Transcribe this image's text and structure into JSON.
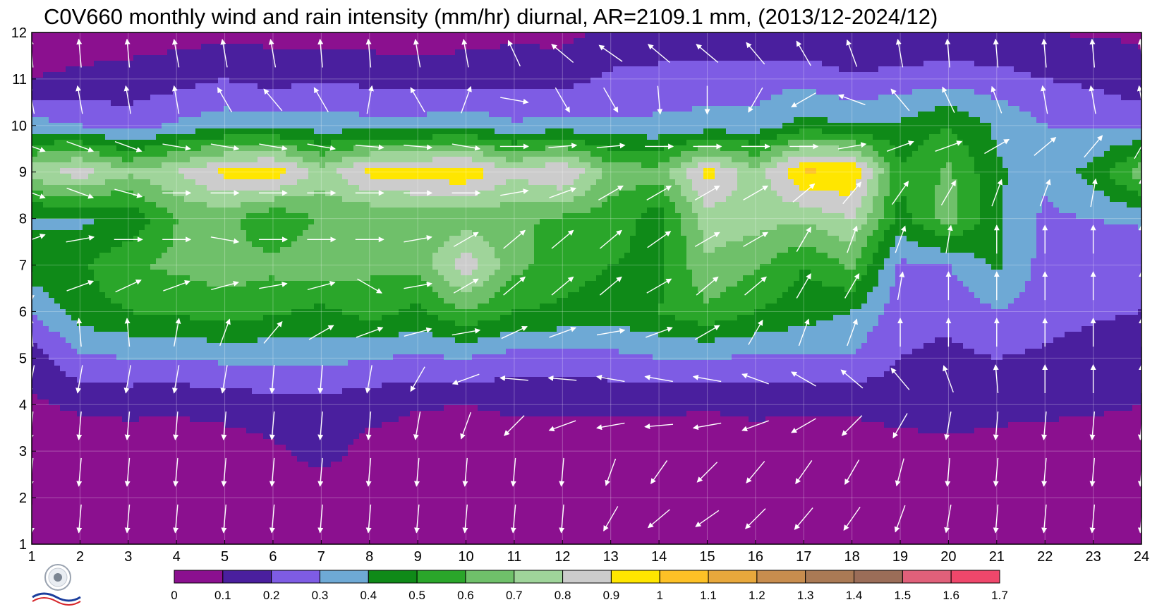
{
  "chart_data": {
    "type": "heatmap",
    "title": "C0V660 monthly wind and rain intensity (mm/hr) diurnal, AR=2109.1 mm, (2013/12-2024/12)",
    "x_ticks": [
      "1",
      "2",
      "3",
      "4",
      "5",
      "6",
      "7",
      "8",
      "9",
      "10",
      "11",
      "12",
      "13",
      "14",
      "15",
      "16",
      "17",
      "18",
      "19",
      "20",
      "21",
      "22",
      "23",
      "24"
    ],
    "y_ticks": [
      "1",
      "2",
      "3",
      "4",
      "5",
      "6",
      "7",
      "8",
      "9",
      "10",
      "11",
      "12"
    ],
    "xlim": [
      1,
      24
    ],
    "ylim": [
      1,
      12
    ],
    "colorbar": {
      "levels": [
        "0",
        "0.1",
        "0.2",
        "0.3",
        "0.4",
        "0.5",
        "0.6",
        "0.7",
        "0.8",
        "0.9",
        "1",
        "1.1",
        "1.2",
        "1.3",
        "1.4",
        "1.5",
        "1.6",
        "1.7"
      ],
      "colors": [
        "#8b108f",
        "#4a1f9e",
        "#7e5ce4",
        "#6ea9d5",
        "#0f8a18",
        "#2aa62a",
        "#6fc06a",
        "#9fd49a",
        "#cccccc",
        "#ffe600",
        "#fdc126",
        "#e8a83c",
        "#c88d4e",
        "#aa7a55",
        "#9b6d58",
        "#e0607a",
        "#ef476b",
        "#d42a3d"
      ]
    },
    "rain_intensity": [
      [
        0.03,
        0.03,
        0.03,
        0.03,
        0.03,
        0.03,
        0.08,
        0.03,
        0.03,
        0.03,
        0.03,
        0.03,
        0.03,
        0.03,
        0.03,
        0.03,
        0.03,
        0.03,
        0.03,
        0.03,
        0.03,
        0.03,
        0.03,
        0.03
      ],
      [
        0.03,
        0.03,
        0.03,
        0.03,
        0.03,
        0.03,
        0.03,
        0.03,
        0.03,
        0.03,
        0.03,
        0.03,
        0.03,
        0.03,
        0.03,
        0.03,
        0.03,
        0.03,
        0.03,
        0.03,
        0.03,
        0.03,
        0.03,
        0.03
      ],
      [
        0.03,
        0.03,
        0.04,
        0.04,
        0.05,
        0.08,
        0.15,
        0.06,
        0.04,
        0.04,
        0.04,
        0.04,
        0.04,
        0.04,
        0.04,
        0.04,
        0.04,
        0.04,
        0.05,
        0.05,
        0.04,
        0.04,
        0.04,
        0.04
      ],
      [
        0.08,
        0.12,
        0.13,
        0.12,
        0.14,
        0.16,
        0.16,
        0.14,
        0.11,
        0.1,
        0.12,
        0.12,
        0.12,
        0.12,
        0.11,
        0.13,
        0.12,
        0.12,
        0.15,
        0.19,
        0.15,
        0.13,
        0.12,
        0.1
      ],
      [
        0.15,
        0.28,
        0.3,
        0.3,
        0.32,
        0.32,
        0.34,
        0.3,
        0.29,
        0.3,
        0.26,
        0.26,
        0.27,
        0.3,
        0.3,
        0.29,
        0.28,
        0.29,
        0.2,
        0.18,
        0.2,
        0.18,
        0.14,
        0.12
      ],
      [
        0.3,
        0.45,
        0.5,
        0.52,
        0.55,
        0.52,
        0.47,
        0.55,
        0.47,
        0.6,
        0.5,
        0.48,
        0.45,
        0.5,
        0.58,
        0.5,
        0.45,
        0.4,
        0.24,
        0.22,
        0.3,
        0.25,
        0.22,
        0.2
      ],
      [
        0.48,
        0.48,
        0.59,
        0.62,
        0.65,
        0.63,
        0.67,
        0.62,
        0.64,
        0.86,
        0.63,
        0.55,
        0.5,
        0.48,
        0.68,
        0.62,
        0.5,
        0.62,
        0.28,
        0.3,
        0.42,
        0.26,
        0.25,
        0.22
      ],
      [
        0.38,
        0.38,
        0.42,
        0.6,
        0.64,
        0.5,
        0.62,
        0.6,
        0.62,
        0.64,
        0.62,
        0.58,
        0.55,
        0.45,
        0.76,
        0.74,
        0.72,
        0.8,
        0.46,
        0.65,
        0.42,
        0.28,
        0.3,
        0.32
      ],
      [
        0.76,
        0.86,
        0.72,
        0.8,
        0.93,
        0.98,
        0.75,
        0.93,
        0.96,
        0.98,
        0.82,
        0.92,
        0.66,
        0.64,
        0.94,
        0.74,
        1.02,
        1.0,
        0.52,
        0.62,
        0.42,
        0.32,
        0.44,
        0.66
      ],
      [
        0.34,
        0.3,
        0.24,
        0.32,
        0.36,
        0.36,
        0.34,
        0.34,
        0.34,
        0.37,
        0.31,
        0.34,
        0.32,
        0.32,
        0.33,
        0.34,
        0.44,
        0.4,
        0.42,
        0.5,
        0.38,
        0.3,
        0.28,
        0.28
      ],
      [
        0.1,
        0.12,
        0.14,
        0.16,
        0.2,
        0.16,
        0.19,
        0.17,
        0.15,
        0.16,
        0.18,
        0.16,
        0.22,
        0.24,
        0.26,
        0.25,
        0.27,
        0.21,
        0.24,
        0.26,
        0.24,
        0.2,
        0.18,
        0.12
      ],
      [
        0.04,
        0.05,
        0.05,
        0.06,
        0.07,
        0.07,
        0.06,
        0.05,
        0.05,
        0.06,
        0.07,
        0.07,
        0.12,
        0.12,
        0.11,
        0.11,
        0.11,
        0.1,
        0.1,
        0.1,
        0.1,
        0.1,
        0.09,
        0.09
      ]
    ],
    "wind_direction_deg": [
      [
        0,
        5,
        5,
        5,
        5,
        5,
        5,
        5,
        5,
        5,
        5,
        5,
        30,
        50,
        55,
        45,
        40,
        35,
        20,
        10,
        5,
        5,
        5,
        5
      ],
      [
        5,
        5,
        5,
        5,
        5,
        5,
        5,
        5,
        5,
        5,
        5,
        5,
        20,
        35,
        45,
        40,
        35,
        30,
        15,
        5,
        5,
        5,
        5,
        5
      ],
      [
        5,
        5,
        5,
        5,
        5,
        5,
        5,
        5,
        10,
        20,
        45,
        70,
        80,
        85,
        80,
        70,
        60,
        45,
        30,
        10,
        5,
        5,
        5,
        5
      ],
      [
        10,
        10,
        10,
        10,
        10,
        5,
        5,
        10,
        30,
        70,
        95,
        95,
        100,
        100,
        100,
        110,
        120,
        130,
        140,
        160,
        175,
        180,
        180,
        180
      ],
      [
        175,
        175,
        175,
        190,
        200,
        220,
        240,
        250,
        255,
        260,
        245,
        250,
        260,
        250,
        240,
        210,
        200,
        200,
        180,
        180,
        180,
        180,
        180,
        180
      ],
      [
        0,
        250,
        245,
        250,
        255,
        260,
        255,
        300,
        260,
        240,
        230,
        230,
        230,
        240,
        230,
        230,
        210,
        210,
        190,
        180,
        180,
        180,
        180,
        180
      ],
      [
        250,
        260,
        270,
        270,
        280,
        270,
        270,
        270,
        260,
        240,
        230,
        230,
        230,
        235,
        240,
        240,
        210,
        200,
        200,
        190,
        180,
        180,
        180,
        180
      ],
      [
        290,
        290,
        285,
        270,
        270,
        270,
        270,
        270,
        270,
        270,
        260,
        250,
        240,
        240,
        240,
        240,
        230,
        220,
        215,
        210,
        200,
        200,
        190,
        180
      ],
      [
        290,
        290,
        290,
        280,
        280,
        280,
        280,
        275,
        275,
        280,
        270,
        265,
        265,
        270,
        270,
        270,
        270,
        260,
        250,
        250,
        240,
        230,
        220,
        210
      ],
      [
        170,
        170,
        170,
        170,
        150,
        140,
        150,
        190,
        150,
        200,
        280,
        330,
        330,
        355,
        0,
        30,
        60,
        110,
        140,
        155,
        160,
        170,
        170,
        170
      ],
      [
        175,
        175,
        175,
        170,
        170,
        170,
        175,
        175,
        170,
        170,
        155,
        130,
        125,
        130,
        130,
        140,
        150,
        160,
        170,
        175,
        175,
        175,
        175,
        175
      ],
      [
        175,
        175,
        175,
        175,
        175,
        175,
        175,
        175,
        175,
        175,
        175,
        175,
        165,
        160,
        160,
        160,
        160,
        165,
        170,
        175,
        175,
        175,
        175,
        175
      ]
    ]
  }
}
